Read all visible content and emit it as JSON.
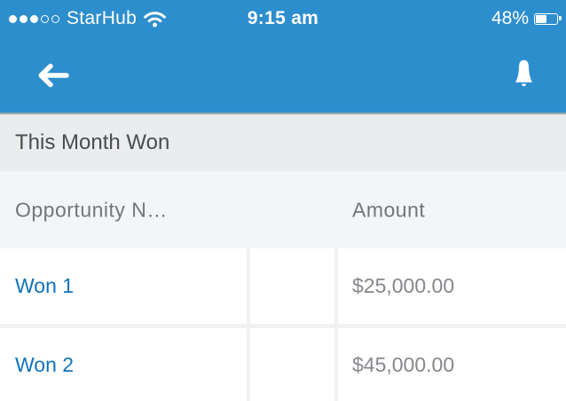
{
  "status_bar": {
    "carrier": "StarHub",
    "time": "9:15 am",
    "battery_percent": "48%",
    "battery_level": 0.48,
    "signal": {
      "filled": 3,
      "total": 5
    },
    "icons": {
      "signal": "signal-dots",
      "wifi": "wifi-icon",
      "battery": "battery-icon"
    }
  },
  "nav_bar": {
    "icons": {
      "back": "back-arrow-icon",
      "notifications": "bell-icon"
    }
  },
  "section": {
    "title": "This Month Won"
  },
  "table": {
    "columns": [
      {
        "label": "Opportunity N…"
      },
      {
        "label": ""
      },
      {
        "label": "Amount"
      }
    ],
    "rows": [
      {
        "name": "Won 1",
        "amount": "$25,000.00"
      },
      {
        "name": "Won 2",
        "amount": "$45,000.00"
      }
    ]
  },
  "colors": {
    "header_blue": "#2D8ECD",
    "divider_blue_gray": "#9FABB4",
    "section_bg": "#EBECED",
    "section_text": "#4A4C4E",
    "table_header_bg": "#F4F5F6",
    "table_header_text": "#72767B",
    "row_gap": "#F0F1F2",
    "link_blue": "#1173B9",
    "amount_gray": "#85878C",
    "white": "#FFFFFF"
  }
}
